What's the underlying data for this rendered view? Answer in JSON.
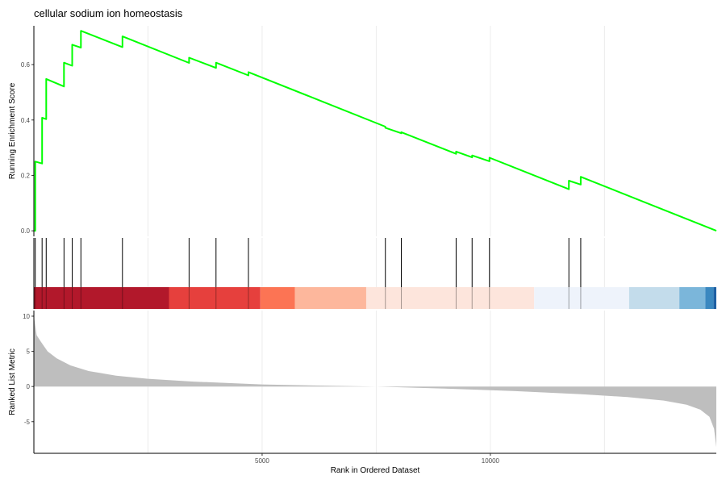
{
  "chart_data": {
    "type": "line",
    "title": "cellular sodium ion homeostasis",
    "xlabel": "Rank in Ordered Dataset",
    "xlim": [
      0,
      14950
    ],
    "x_ticks": [
      5000,
      10000
    ],
    "x_tick_labels": [
      "5000",
      "10000"
    ],
    "panels": [
      {
        "name": "running-enrichment",
        "ylabel": "Running Enrichment Score",
        "ylim": [
          -0.02,
          0.74
        ],
        "y_ticks": [
          0.0,
          0.2,
          0.4,
          0.6
        ],
        "y_tick_labels": [
          "0.0",
          "0.2",
          "0.4",
          "0.6"
        ],
        "line_color": "#00ff00",
        "series": [
          {
            "x": [
              0,
              30,
              30,
              180,
              180,
              270,
              270,
              660,
              660,
              840,
              840,
              1030,
              1030,
              1940,
              1940,
              3400,
              3400,
              3990,
              3990,
              4700,
              4700,
              7700,
              7700,
              8050,
              8050,
              9250,
              9250,
              9600,
              9600,
              9980,
              9980,
              11720,
              11720,
              11980,
              11980,
              14950
            ],
            "y": [
              0.0,
              0.0,
              0.25,
              0.243,
              0.408,
              0.403,
              0.548,
              0.521,
              0.607,
              0.596,
              0.672,
              0.661,
              0.722,
              0.663,
              0.702,
              0.606,
              0.625,
              0.588,
              0.607,
              0.561,
              0.573,
              0.376,
              0.372,
              0.352,
              0.356,
              0.278,
              0.286,
              0.265,
              0.272,
              0.251,
              0.264,
              0.15,
              0.181,
              0.167,
              0.195,
              0.0
            ]
          }
        ]
      },
      {
        "name": "gene-hits",
        "hits": [
          30,
          180,
          270,
          660,
          840,
          1030,
          1940,
          3400,
          3990,
          4700,
          7700,
          8050,
          9250,
          9600,
          9980,
          11720,
          11980
        ]
      },
      {
        "name": "rank-colorbar",
        "segments": [
          {
            "start": 0,
            "end": 2960,
            "color": "#b2182b"
          },
          {
            "start": 2960,
            "end": 4960,
            "color": "#e6403d"
          },
          {
            "start": 4960,
            "end": 5720,
            "color": "#fc7454"
          },
          {
            "start": 5720,
            "end": 7280,
            "color": "#fdb79c"
          },
          {
            "start": 7280,
            "end": 10960,
            "color": "#fde5dc"
          },
          {
            "start": 10960,
            "end": 13040,
            "color": "#eef3fb"
          },
          {
            "start": 13040,
            "end": 14140,
            "color": "#c3dceb"
          },
          {
            "start": 14140,
            "end": 14710,
            "color": "#7bb6da"
          },
          {
            "start": 14710,
            "end": 14890,
            "color": "#3a88c0"
          },
          {
            "start": 14890,
            "end": 14950,
            "color": "#1e5fa3"
          }
        ]
      },
      {
        "name": "ranked-list-metric",
        "ylabel": "Ranked List Metric",
        "ylim": [
          -9.5,
          10.8
        ],
        "y_ticks": [
          -5,
          0,
          5,
          10
        ],
        "y_tick_labels": [
          "-5",
          "0",
          "5",
          "10"
        ],
        "fill_color": "#bebebe",
        "series": [
          {
            "x": [
              0,
              60,
              150,
              300,
              500,
              800,
              1200,
              1800,
              2500,
              3500,
              5000,
              6500,
              7500,
              9000,
              10500,
              12000,
              13000,
              13800,
              14300,
              14600,
              14800,
              14900,
              14950
            ],
            "y": [
              10,
              7.3,
              6.4,
              5.0,
              4.0,
              3.0,
              2.2,
              1.55,
              1.1,
              0.7,
              0.3,
              0.1,
              0.0,
              -0.3,
              -0.65,
              -1.1,
              -1.5,
              -2.0,
              -2.6,
              -3.3,
              -4.3,
              -6.0,
              -8.6
            ]
          }
        ]
      }
    ]
  }
}
